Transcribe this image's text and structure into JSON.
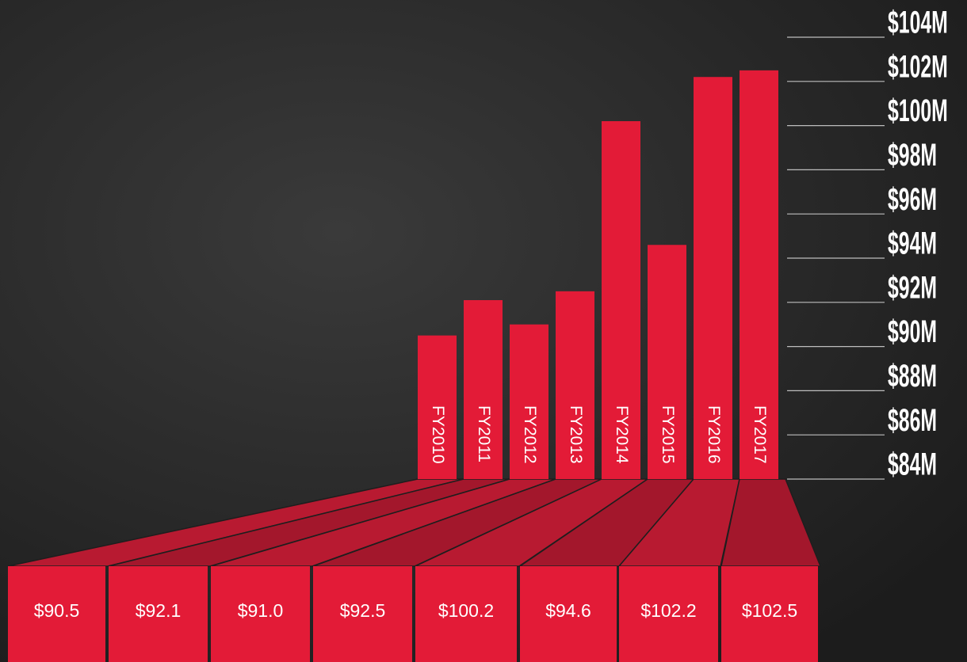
{
  "chart_data": {
    "type": "bar",
    "categories": [
      "FY2010",
      "FY2011",
      "FY2012",
      "FY2013",
      "FY2014",
      "FY2015",
      "FY2016",
      "FY2017"
    ],
    "values": [
      90.5,
      92.1,
      91.0,
      92.5,
      100.2,
      94.6,
      102.2,
      102.5
    ],
    "value_labels": [
      "$90.5",
      "$92.1",
      "$91.0",
      "$92.5",
      "$100.2",
      "$94.6",
      "$102.2",
      "$102.5"
    ],
    "color": "#e31b37",
    "ylim": [
      84,
      104
    ],
    "yticks": [
      {
        "value": 84,
        "label": "$84M"
      },
      {
        "value": 86,
        "label": "$86M"
      },
      {
        "value": 88,
        "label": "$88M"
      },
      {
        "value": 90,
        "label": "$90M"
      },
      {
        "value": 92,
        "label": "$92M"
      },
      {
        "value": 94,
        "label": "$94M"
      },
      {
        "value": 96,
        "label": "$96M"
      },
      {
        "value": 98,
        "label": "$98M"
      },
      {
        "value": 100,
        "label": "$100M"
      },
      {
        "value": 102,
        "label": "$102M"
      },
      {
        "value": 104,
        "label": "$104M"
      }
    ]
  }
}
